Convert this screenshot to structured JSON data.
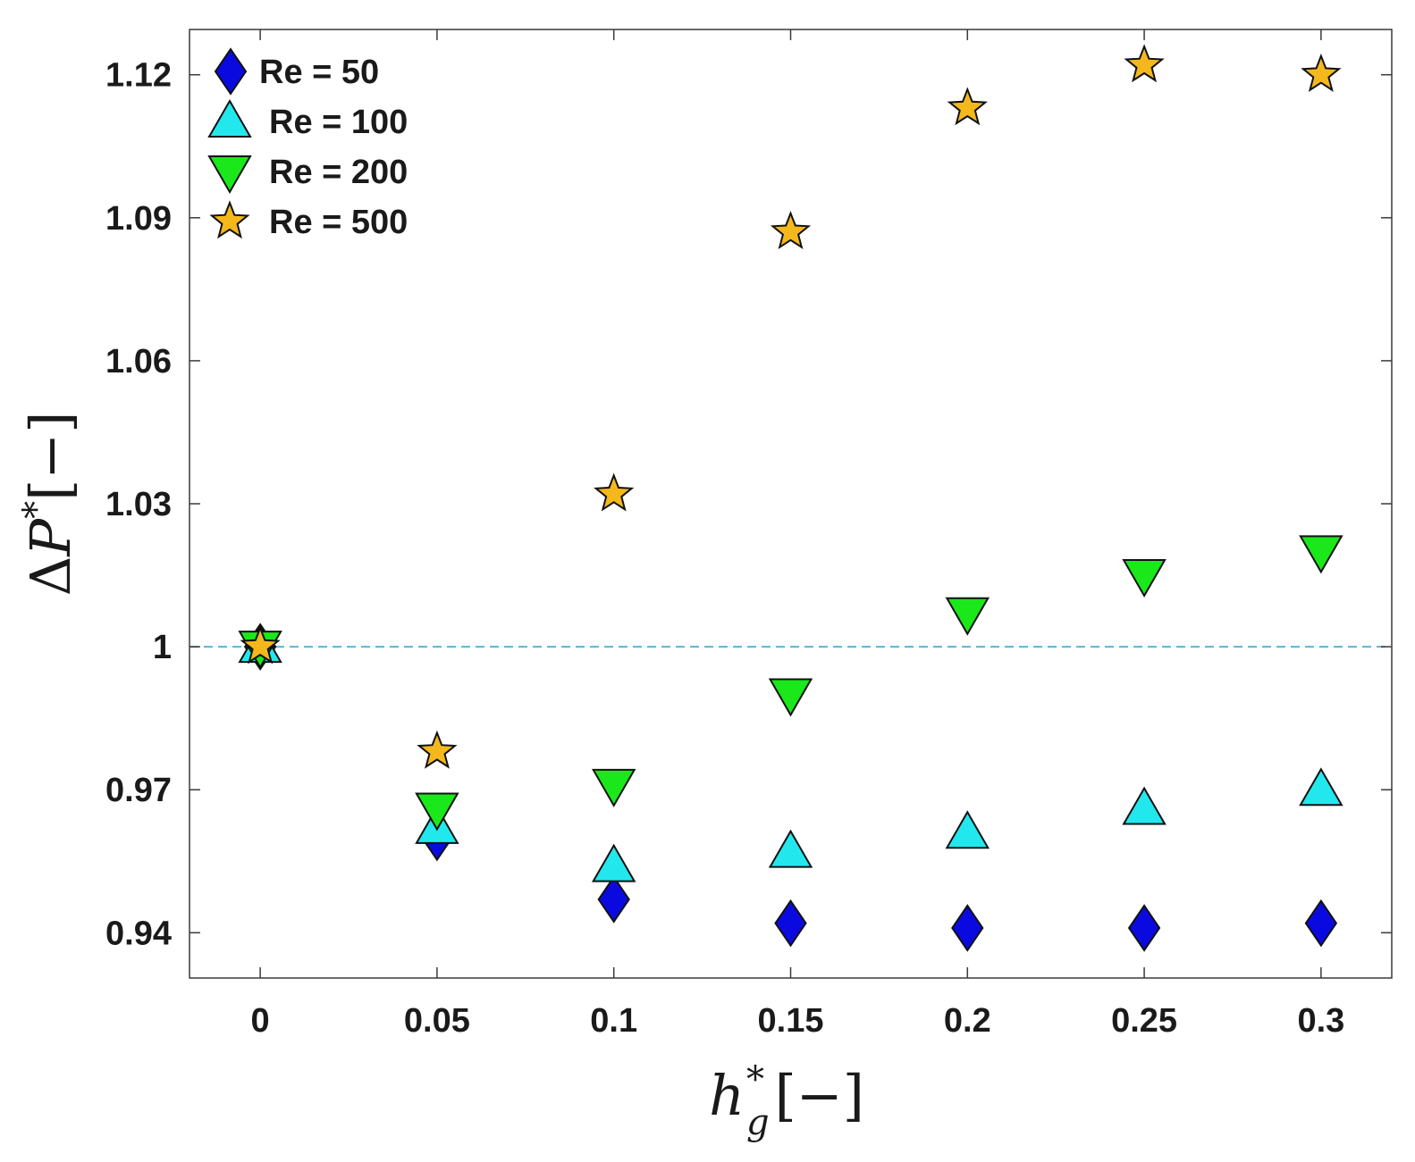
{
  "chart_data": {
    "type": "scatter",
    "title": "",
    "xlabel": {
      "base": "h",
      "sup": "*",
      "sub": "g",
      "unit": "[−]"
    },
    "ylabel": {
      "prefix": "Δ",
      "base": "P",
      "sup": "*",
      "unit": "[−]"
    },
    "xlim": [
      -0.02,
      0.32
    ],
    "ylim": [
      0.9305,
      1.1295
    ],
    "xticks": [
      0,
      0.05,
      0.1,
      0.15,
      0.2,
      0.25,
      0.3
    ],
    "xtick_labels": [
      "0",
      "0.05",
      "0.1",
      "0.15",
      "0.2",
      "0.25",
      "0.3"
    ],
    "yticks": [
      0.94,
      0.97,
      1.0,
      1.03,
      1.06,
      1.09,
      1.12
    ],
    "ytick_labels": [
      "0.94",
      "0.97",
      "1",
      "1.03",
      "1.06",
      "1.09",
      "1.12"
    ],
    "grid": false,
    "legend_position": "top-left",
    "reference_line": {
      "y": 1.0,
      "style": "dashed",
      "color": "#5ab4d6"
    },
    "series": [
      {
        "name": "Re = 50",
        "marker": "diamond",
        "color": "#0a0ae0",
        "x": [
          0,
          0.05,
          0.1,
          0.15,
          0.2,
          0.25,
          0.3
        ],
        "values": [
          1.0,
          0.96,
          0.947,
          0.942,
          0.941,
          0.941,
          0.942
        ]
      },
      {
        "name": "Re = 100",
        "marker": "triangle-up",
        "color": "#22e8ee",
        "x": [
          0,
          0.05,
          0.1,
          0.15,
          0.2,
          0.25,
          0.3
        ],
        "values": [
          1.0,
          0.962,
          0.954,
          0.957,
          0.961,
          0.966,
          0.97
        ]
      },
      {
        "name": "Re = 200",
        "marker": "triangle-down",
        "color": "#1be81b",
        "x": [
          0,
          0.05,
          0.1,
          0.15,
          0.2,
          0.25,
          0.3
        ],
        "values": [
          1.0,
          0.966,
          0.971,
          0.99,
          1.007,
          1.015,
          1.02
        ]
      },
      {
        "name": "Re = 500",
        "marker": "star",
        "color": "#f5b81c",
        "x": [
          0,
          0.05,
          0.1,
          0.15,
          0.2,
          0.25,
          0.3
        ],
        "values": [
          1.0,
          0.978,
          1.032,
          1.087,
          1.113,
          1.122,
          1.12
        ]
      }
    ]
  }
}
